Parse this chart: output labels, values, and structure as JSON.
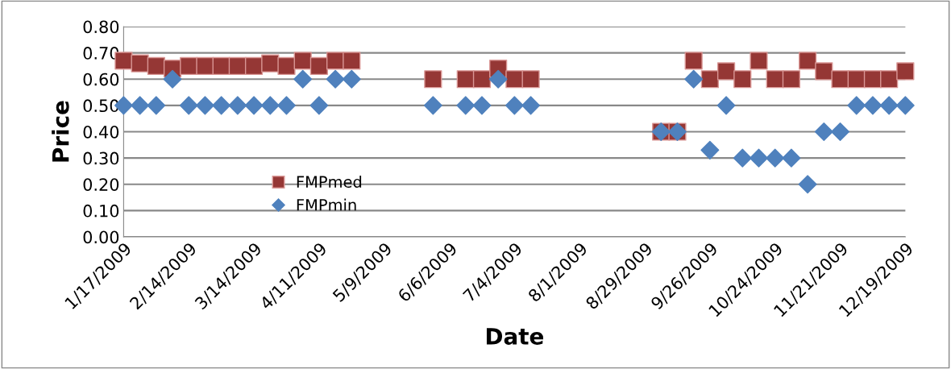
{
  "chart_data": {
    "type": "scatter",
    "xlabel": "Date",
    "ylabel": "Price",
    "x": [
      "2009-01-17",
      "2009-01-24",
      "2009-01-31",
      "2009-02-07",
      "2009-02-14",
      "2009-02-21",
      "2009-02-28",
      "2009-03-07",
      "2009-03-14",
      "2009-03-21",
      "2009-03-28",
      "2009-04-04",
      "2009-04-11",
      "2009-04-18",
      "2009-04-25",
      "2009-05-30",
      "2009-06-13",
      "2009-06-20",
      "2009-06-27",
      "2009-07-04",
      "2009-07-11",
      "2009-09-05",
      "2009-09-12",
      "2009-09-19",
      "2009-09-26",
      "2009-10-03",
      "2009-10-10",
      "2009-10-17",
      "2009-10-24",
      "2009-10-31",
      "2009-11-07",
      "2009-11-14",
      "2009-11-21",
      "2009-11-28",
      "2009-12-05",
      "2009-12-12",
      "2009-12-19"
    ],
    "series": [
      {
        "name": "FMPmed",
        "color": "#953735",
        "marker": "square",
        "values": [
          0.67,
          0.66,
          0.65,
          0.64,
          0.65,
          0.65,
          0.65,
          0.65,
          0.65,
          0.66,
          0.65,
          0.67,
          0.65,
          0.67,
          0.67,
          0.6,
          0.6,
          0.6,
          0.64,
          0.6,
          0.6,
          0.4,
          0.4,
          0.67,
          0.6,
          0.63,
          0.6,
          0.67,
          0.6,
          0.6,
          0.67,
          0.63,
          0.6,
          0.6,
          0.6,
          0.6,
          0.63
        ]
      },
      {
        "name": "FMPmin",
        "color": "#4f81bd",
        "marker": "diamond",
        "values": [
          0.5,
          0.5,
          0.5,
          0.6,
          0.5,
          0.5,
          0.5,
          0.5,
          0.5,
          0.5,
          0.5,
          0.6,
          0.5,
          0.6,
          0.6,
          0.5,
          0.5,
          0.5,
          0.6,
          0.5,
          0.5,
          0.4,
          0.4,
          0.6,
          0.33,
          0.5,
          0.3,
          0.3,
          0.3,
          0.3,
          0.2,
          0.4,
          0.4,
          0.5,
          0.5,
          0.5,
          0.5
        ]
      }
    ],
    "xlim": [
      "2009-01-17",
      "2009-12-19"
    ],
    "xticks": [
      {
        "value": "2009-01-17",
        "label": "1/17/2009"
      },
      {
        "value": "2009-02-14",
        "label": "2/14/2009"
      },
      {
        "value": "2009-03-14",
        "label": "3/14/2009"
      },
      {
        "value": "2009-04-11",
        "label": "4/11/2009"
      },
      {
        "value": "2009-05-09",
        "label": "5/9/2009"
      },
      {
        "value": "2009-06-06",
        "label": "6/6/2009"
      },
      {
        "value": "2009-07-04",
        "label": "7/4/2009"
      },
      {
        "value": "2009-08-01",
        "label": "8/1/2009"
      },
      {
        "value": "2009-08-29",
        "label": "8/29/2009"
      },
      {
        "value": "2009-09-26",
        "label": "9/26/2009"
      },
      {
        "value": "2009-10-24",
        "label": "10/24/2009"
      },
      {
        "value": "2009-11-21",
        "label": "11/21/2009"
      },
      {
        "value": "2009-12-19",
        "label": "12/19/2009"
      }
    ],
    "ylim": [
      0,
      0.8
    ],
    "yticks": [
      {
        "value": 0,
        "label": "0.00"
      },
      {
        "value": 0.1,
        "label": "0.10"
      },
      {
        "value": 0.2,
        "label": "0.20"
      },
      {
        "value": 0.3,
        "label": "0.30"
      },
      {
        "value": 0.4,
        "label": "0.40"
      },
      {
        "value": 0.5,
        "label": "0.50"
      },
      {
        "value": 0.6,
        "label": "0.60"
      },
      {
        "value": 0.7,
        "label": "0.70"
      },
      {
        "value": 0.8,
        "label": "0.80"
      }
    ],
    "grid": "y",
    "legend": "center left"
  }
}
